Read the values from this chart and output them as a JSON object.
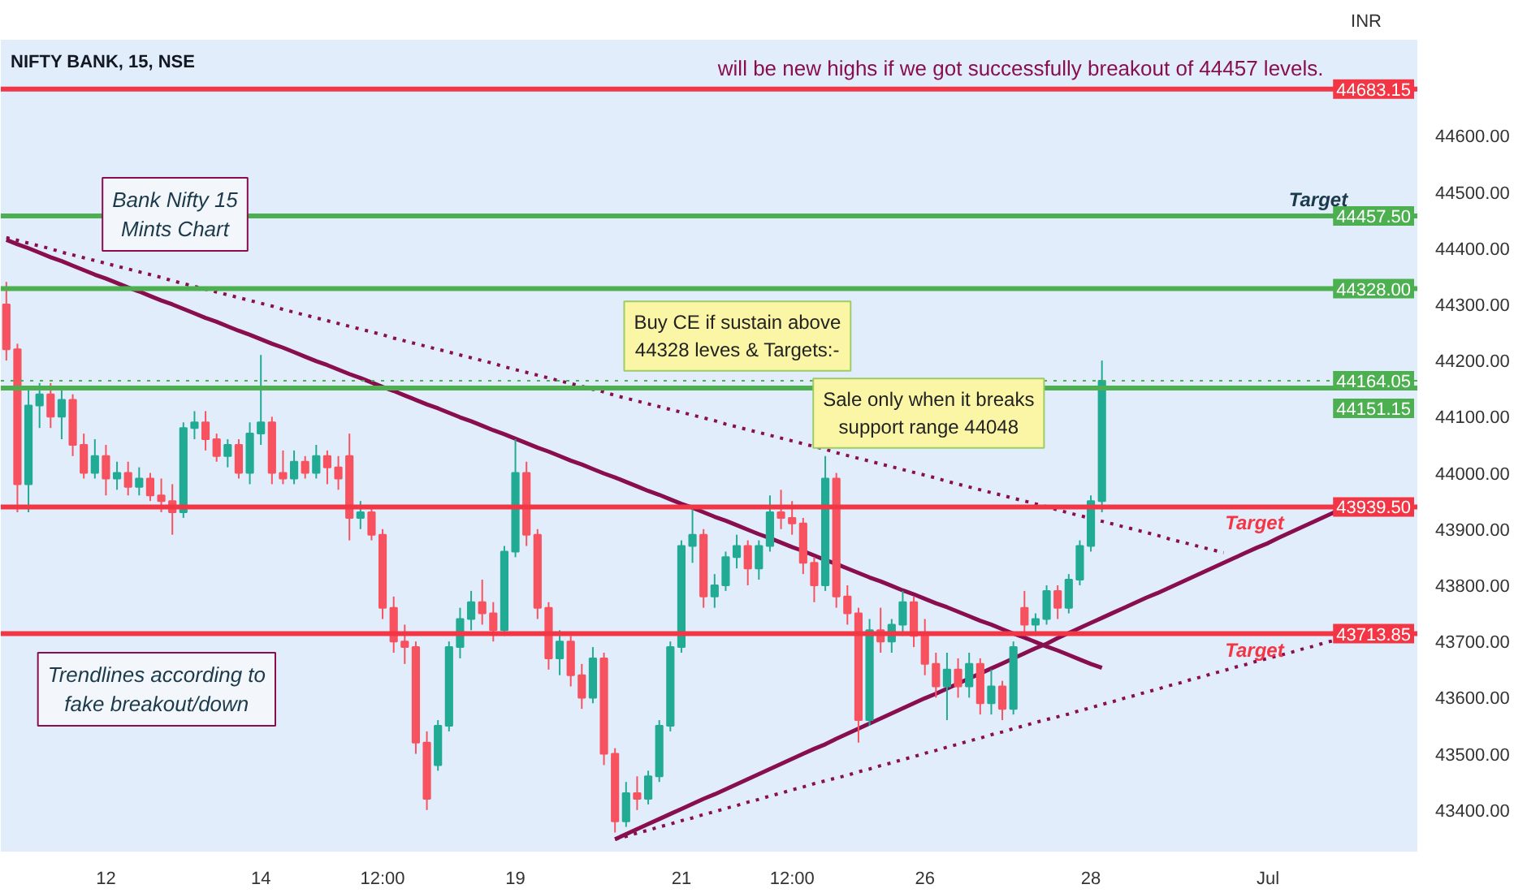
{
  "chart_data": {
    "type": "candlestick",
    "title": "NIFTY BANK, 15, NSE",
    "ylabel": "INR",
    "categories": [
      null,
      null,
      null,
      null,
      null,
      null,
      null,
      null,
      null,
      "12",
      null,
      null,
      null,
      null,
      null,
      null,
      null,
      null,
      null,
      null,
      null,
      null,
      null,
      "14",
      null,
      null,
      null,
      null,
      null,
      null,
      null,
      null,
      null,
      null,
      "12:00",
      null,
      null,
      null,
      null,
      null,
      null,
      null,
      null,
      null,
      null,
      null,
      "19",
      null,
      null,
      null,
      null,
      null,
      null,
      null,
      null,
      null,
      null,
      null,
      null,
      null,
      null,
      "21",
      null,
      null,
      null,
      null,
      null,
      null,
      null,
      null,
      null,
      "12:00",
      null,
      null,
      null,
      null,
      null,
      null,
      null,
      null,
      null,
      null,
      null,
      "26",
      null,
      null,
      null,
      null,
      null,
      null,
      null,
      null,
      null,
      null,
      null,
      null,
      null,
      null,
      "28",
      null,
      null,
      null,
      null,
      null,
      null,
      null,
      null,
      null,
      null,
      null,
      null,
      null,
      null,
      null,
      "Jul",
      null,
      null,
      null,
      null,
      null,
      null,
      null,
      null,
      null,
      null,
      null,
      null,
      null
    ],
    "ohlc": [
      [
        44300,
        44340,
        44200,
        44220
      ],
      [
        44220,
        44230,
        43930,
        43980
      ],
      [
        43980,
        44150,
        43930,
        44120
      ],
      [
        44120,
        44160,
        44080,
        44140
      ],
      [
        44140,
        44160,
        44080,
        44100
      ],
      [
        44100,
        44150,
        44060,
        44130
      ],
      [
        44130,
        44140,
        44030,
        44050
      ],
      [
        44050,
        44070,
        43990,
        44000
      ],
      [
        44000,
        44060,
        43990,
        44030
      ],
      [
        44030,
        44050,
        43960,
        43990
      ],
      [
        43990,
        44020,
        43970,
        44000
      ],
      [
        44000,
        44020,
        43960,
        43975
      ],
      [
        43975,
        44010,
        43960,
        43990
      ],
      [
        43990,
        44000,
        43950,
        43960
      ],
      [
        43960,
        43990,
        43930,
        43950
      ],
      [
        43950,
        43980,
        43890,
        43930
      ],
      [
        43930,
        44090,
        43920,
        44080
      ],
      [
        44080,
        44110,
        44060,
        44090
      ],
      [
        44090,
        44110,
        44040,
        44060
      ],
      [
        44060,
        44070,
        44020,
        44030
      ],
      [
        44030,
        44060,
        44010,
        44050
      ],
      [
        44050,
        44060,
        43990,
        44000
      ],
      [
        44000,
        44090,
        43980,
        44070
      ],
      [
        44070,
        44210,
        44050,
        44090
      ],
      [
        44090,
        44100,
        43980,
        44000
      ],
      [
        44000,
        44040,
        43980,
        43990
      ],
      [
        43990,
        44040,
        43980,
        44020
      ],
      [
        44020,
        44030,
        43990,
        44000
      ],
      [
        44000,
        44050,
        43990,
        44030
      ],
      [
        44030,
        44040,
        43980,
        44010
      ],
      [
        44010,
        44030,
        43970,
        43990
      ],
      [
        44030,
        44070,
        43880,
        43920
      ],
      [
        43920,
        43950,
        43900,
        43930
      ],
      [
        43930,
        43940,
        43880,
        43890
      ],
      [
        43890,
        43900,
        43740,
        43760
      ],
      [
        43760,
        43780,
        43680,
        43700
      ],
      [
        43700,
        43730,
        43660,
        43690
      ],
      [
        43690,
        43700,
        43500,
        43520
      ],
      [
        43520,
        43540,
        43400,
        43420
      ],
      [
        43480,
        43560,
        43470,
        43550
      ],
      [
        43550,
        43700,
        43540,
        43690
      ],
      [
        43690,
        43760,
        43670,
        43740
      ],
      [
        43740,
        43790,
        43720,
        43770
      ],
      [
        43770,
        43810,
        43730,
        43750
      ],
      [
        43750,
        43770,
        43700,
        43720
      ],
      [
        43720,
        43870,
        43710,
        43860
      ],
      [
        43860,
        44060,
        43850,
        44000
      ],
      [
        44000,
        44020,
        43870,
        43890
      ],
      [
        43890,
        43900,
        43740,
        43760
      ],
      [
        43760,
        43770,
        43650,
        43670
      ],
      [
        43670,
        43720,
        43640,
        43700
      ],
      [
        43700,
        43710,
        43620,
        43640
      ],
      [
        43640,
        43660,
        43580,
        43600
      ],
      [
        43600,
        43690,
        43590,
        43670
      ],
      [
        43670,
        43680,
        43480,
        43500
      ],
      [
        43500,
        43510,
        43360,
        43380
      ],
      [
        43380,
        43450,
        43370,
        43430
      ],
      [
        43430,
        43460,
        43400,
        43420
      ],
      [
        43420,
        43470,
        43410,
        43460
      ],
      [
        43460,
        43560,
        43450,
        43550
      ],
      [
        43550,
        43700,
        43540,
        43690
      ],
      [
        43690,
        43880,
        43680,
        43870
      ],
      [
        43870,
        43940,
        43840,
        43890
      ],
      [
        43890,
        43900,
        43760,
        43780
      ],
      [
        43780,
        43820,
        43760,
        43800
      ],
      [
        43800,
        43860,
        43790,
        43850
      ],
      [
        43850,
        43890,
        43830,
        43870
      ],
      [
        43870,
        43880,
        43800,
        43830
      ],
      [
        43830,
        43880,
        43810,
        43870
      ],
      [
        43870,
        43960,
        43860,
        43930
      ],
      [
        43930,
        43970,
        43900,
        43920
      ],
      [
        43920,
        43950,
        43890,
        43910
      ],
      [
        43910,
        43920,
        43820,
        43840
      ],
      [
        43840,
        43850,
        43770,
        43800
      ],
      [
        43800,
        44030,
        43790,
        43990
      ],
      [
        43990,
        44000,
        43760,
        43780
      ],
      [
        43780,
        43800,
        43730,
        43750
      ],
      [
        43750,
        43760,
        43520,
        43560
      ],
      [
        43560,
        43740,
        43550,
        43720
      ],
      [
        43720,
        43760,
        43680,
        43700
      ],
      [
        43700,
        43740,
        43680,
        43730
      ],
      [
        43730,
        43790,
        43710,
        43770
      ],
      [
        43770,
        43780,
        43690,
        43710
      ],
      [
        43710,
        43740,
        43640,
        43660
      ],
      [
        43660,
        43680,
        43600,
        43620
      ],
      [
        43620,
        43680,
        43560,
        43650
      ],
      [
        43650,
        43670,
        43600,
        43620
      ],
      [
        43620,
        43680,
        43600,
        43660
      ],
      [
        43660,
        43670,
        43570,
        43590
      ],
      [
        43590,
        43650,
        43570,
        43620
      ],
      [
        43620,
        43630,
        43560,
        43580
      ],
      [
        43580,
        43700,
        43570,
        43690
      ],
      [
        43760,
        43790,
        43710,
        43730
      ],
      [
        43730,
        43750,
        43710,
        43740
      ],
      [
        43740,
        43800,
        43730,
        43790
      ],
      [
        43790,
        43800,
        43740,
        43760
      ],
      [
        43760,
        43820,
        43750,
        43810
      ],
      [
        43810,
        43880,
        43800,
        43870
      ],
      [
        43870,
        43960,
        43860,
        43950
      ],
      [
        43950,
        44200,
        43930,
        44164.05
      ],
      null,
      null,
      null,
      null,
      null,
      null,
      null,
      null,
      null,
      null,
      null,
      null,
      null,
      null,
      null,
      null,
      null,
      null,
      null,
      null,
      null,
      null,
      null,
      null,
      null,
      null,
      null,
      null
    ],
    "series": [
      {
        "type": "line",
        "color": "#880e4f",
        "line_style": "solid",
        "values": [
          44415,
          44407,
          44400,
          44392,
          44384,
          44377,
          44369,
          44361,
          44353,
          44346,
          44338,
          44330,
          44323,
          44315,
          44307,
          44300,
          44292,
          44284,
          44276,
          44269,
          44261,
          44253,
          44246,
          44238,
          44230,
          44223,
          44215,
          44207,
          44199,
          44192,
          44184,
          44176,
          44169,
          44161,
          44153,
          44146,
          44138,
          44130,
          44122,
          44115,
          44107,
          44099,
          44092,
          44084,
          44076,
          44069,
          44061,
          44053,
          44045,
          44038,
          44030,
          44022,
          44015,
          44007,
          43999,
          43992,
          43984,
          43976,
          43968,
          43961,
          43953,
          43945,
          43938,
          43930,
          43922,
          43915,
          43907,
          43899,
          43891,
          43884,
          43876,
          43868,
          43861,
          43853,
          43845,
          43838,
          43830,
          43822,
          43814,
          43807,
          43799,
          43791,
          43784,
          43776,
          43768,
          43761,
          43753,
          43745,
          43737,
          43730,
          43722,
          43714,
          43707,
          43699,
          43691,
          43684,
          43676,
          43668,
          43660,
          43653,
          null,
          null,
          null,
          null,
          null,
          null,
          null,
          null,
          null,
          null,
          null,
          null,
          null,
          null,
          null,
          null,
          null,
          null,
          null,
          null,
          null,
          null,
          null,
          null,
          null,
          null,
          null,
          null
        ]
      },
      {
        "type": "line",
        "color": "#880e4f",
        "line_style": "dotted",
        "values": [
          44419,
          44414,
          44409,
          44404,
          44399,
          44393,
          44388,
          44383,
          44378,
          44373,
          44368,
          44363,
          44358,
          44353,
          44348,
          44342,
          44337,
          44332,
          44327,
          44322,
          44317,
          44312,
          44307,
          44302,
          44297,
          44291,
          44286,
          44281,
          44276,
          44271,
          44266,
          44261,
          44256,
          44251,
          44246,
          44240,
          44235,
          44230,
          44225,
          44220,
          44215,
          44210,
          44205,
          44200,
          44195,
          44189,
          44184,
          44179,
          44174,
          44169,
          44164,
          44159,
          44154,
          44149,
          44144,
          44138,
          44133,
          44128,
          44123,
          44118,
          44113,
          44108,
          44103,
          44098,
          44093,
          44087,
          44082,
          44077,
          44072,
          44067,
          44062,
          44057,
          44052,
          44047,
          44042,
          44036,
          44031,
          44026,
          44021,
          44016,
          44011,
          44006,
          44001,
          43996,
          43991,
          43985,
          43980,
          43975,
          43970,
          43965,
          43960,
          43955,
          43950,
          43945,
          43940,
          43934,
          43929,
          43924,
          43919,
          43914,
          43909,
          43904,
          43899,
          43894,
          43889,
          43883,
          43878,
          43873,
          43868,
          43863,
          43858,
          null,
          null,
          null,
          null,
          null,
          null,
          null,
          null,
          null,
          null,
          null,
          null,
          null,
          null,
          null,
          null,
          null
        ]
      },
      {
        "type": "line",
        "color": "#880e4f",
        "line_style": "solid",
        "values": [
          null,
          null,
          null,
          null,
          null,
          null,
          null,
          null,
          null,
          null,
          null,
          null,
          null,
          null,
          null,
          null,
          null,
          null,
          null,
          null,
          null,
          null,
          null,
          null,
          null,
          null,
          null,
          null,
          null,
          null,
          null,
          null,
          null,
          null,
          null,
          null,
          null,
          null,
          null,
          null,
          null,
          null,
          null,
          null,
          null,
          null,
          null,
          null,
          null,
          null,
          null,
          null,
          null,
          null,
          null,
          43348,
          43357,
          43366,
          43375,
          43384,
          43393,
          43402,
          43411,
          43420,
          43428,
          43437,
          43446,
          43455,
          43464,
          43473,
          43482,
          43491,
          43500,
          43509,
          43517,
          43527,
          43536,
          43545,
          43554,
          43563,
          43572,
          43581,
          43590,
          43599,
          43607,
          43616,
          43625,
          43634,
          43643,
          43652,
          43661,
          43670,
          43679,
          43688,
          43696,
          43706,
          43715,
          43724,
          43733,
          43742,
          43751,
          43760,
          43769,
          43778,
          43786,
          43795,
          43804,
          43813,
          43822,
          43831,
          43840,
          43849,
          43858,
          43867,
          43875,
          43885,
          43894,
          43903,
          43912,
          43921,
          43930,
          null,
          null,
          null,
          null,
          null,
          null,
          null
        ]
      },
      {
        "type": "line",
        "color": "#880e4f",
        "line_style": "dotted",
        "values": [
          null,
          null,
          null,
          null,
          null,
          null,
          null,
          null,
          null,
          null,
          null,
          null,
          null,
          null,
          null,
          null,
          null,
          null,
          null,
          null,
          null,
          null,
          null,
          null,
          null,
          null,
          null,
          null,
          null,
          null,
          null,
          null,
          null,
          null,
          null,
          null,
          null,
          null,
          null,
          null,
          null,
          null,
          null,
          null,
          null,
          null,
          null,
          null,
          null,
          null,
          null,
          null,
          null,
          null,
          null,
          43348,
          43353,
          43359,
          43364,
          43370,
          43375,
          43381,
          43386,
          43392,
          43397,
          43403,
          43408,
          43414,
          43419,
          43425,
          43430,
          43436,
          43441,
          43447,
          43452,
          43457,
          43462,
          43468,
          43473,
          43479,
          43484,
          43490,
          43495,
          43501,
          43506,
          43512,
          43517,
          43523,
          43528,
          43534,
          43539,
          43545,
          43550,
          43556,
          43561,
          43566,
          43571,
          43577,
          43582,
          43588,
          43593,
          43599,
          43604,
          43610,
          43615,
          43621,
          43626,
          43632,
          43637,
          43643,
          43648,
          43654,
          43659,
          43665,
          43670,
          43675,
          43680,
          43686,
          43691,
          43697,
          43702,
          null,
          null,
          null,
          null,
          null,
          null,
          null
        ]
      }
    ],
    "ref_lines": [
      {
        "axis": "y",
        "value": 44683.15,
        "label": "44683.15",
        "color": "#f23645"
      },
      {
        "axis": "y",
        "value": 44457.5,
        "label": "44457.50",
        "color": "#4caf50"
      },
      {
        "axis": "y",
        "value": 44328,
        "label": "44328.00",
        "color": "#4caf50"
      },
      {
        "axis": "y",
        "value": 44164.05,
        "label": "44164.05",
        "color": "#4caf50",
        "line_style": "dotted"
      },
      {
        "axis": "y",
        "value": 44151.15,
        "label": "44151.15",
        "color": "#4caf50"
      },
      {
        "axis": "y",
        "value": 43939.5,
        "label": "43939.50",
        "color": "#f23645"
      },
      {
        "axis": "y",
        "value": 43713.85,
        "label": "43713.85",
        "color": "#f23645"
      }
    ],
    "annotations": [
      "Bank Nifty 15\nMints Chart",
      "Trendlines according to\nfake breakout/down",
      "Buy CE if sustain above\n44328 leves & Targets:-",
      "Sale only when it breaks\nsupport range 44048",
      "will be new highs if we got successfully breakout of 44457 levels.",
      {
        "text": "Target",
        "y": 44457.5
      },
      {
        "text": "Target",
        "y": 43939.5
      },
      {
        "text": "Target",
        "y": 43713.85
      }
    ],
    "ylim": [
      43326,
      44771
    ],
    "yticks": [
      {
        "value": 43400,
        "label": "43400.00"
      },
      {
        "value": 43500,
        "label": "43500.00"
      },
      {
        "value": 43600,
        "label": "43600.00"
      },
      {
        "value": 43700,
        "label": "43700.00"
      },
      {
        "value": 43800,
        "label": "43800.00"
      },
      {
        "value": 43900,
        "label": "43900.00"
      },
      {
        "value": 44000,
        "label": "44000.00"
      },
      {
        "value": 44100,
        "label": "44100.00"
      },
      {
        "value": 44200,
        "label": "44200.00"
      },
      {
        "value": 44300,
        "label": "44300.00"
      },
      {
        "value": 44400,
        "label": "44400.00"
      },
      {
        "value": 44500,
        "label": "44500.00"
      },
      {
        "value": 44600,
        "label": "44600.00"
      }
    ],
    "grid": false
  }
}
